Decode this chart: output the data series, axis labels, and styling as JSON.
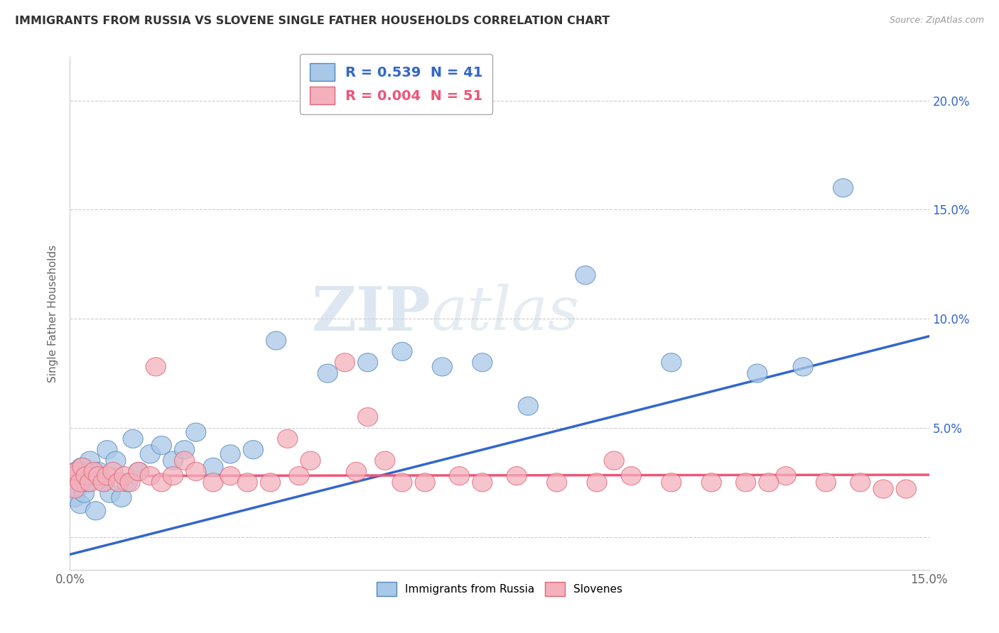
{
  "title": "IMMIGRANTS FROM RUSSIA VS SLOVENE SINGLE FATHER HOUSEHOLDS CORRELATION CHART",
  "source": "Source: ZipAtlas.com",
  "ylabel": "Single Father Households",
  "legend_label1": "Immigrants from Russia",
  "legend_label2": "Slovenes",
  "r1": 0.539,
  "n1": 41,
  "r2": 0.004,
  "n2": 51,
  "color1_fill": "#a8c8e8",
  "color2_fill": "#f4b0bc",
  "color1_edge": "#5588bb",
  "color2_edge": "#dd6677",
  "color1_line": "#3366cc",
  "color2_line": "#ee5577",
  "watermark_top": "ZIP",
  "watermark_bot": "atlas",
  "xlim": [
    0,
    15
  ],
  "ylim": [
    -1.5,
    22
  ],
  "blue_x": [
    0.05,
    0.08,
    0.1,
    0.12,
    0.15,
    0.18,
    0.2,
    0.25,
    0.3,
    0.35,
    0.4,
    0.45,
    0.5,
    0.6,
    0.65,
    0.7,
    0.8,
    0.9,
    1.0,
    1.1,
    1.2,
    1.4,
    1.6,
    1.8,
    2.0,
    2.2,
    2.5,
    2.8,
    3.2,
    3.6,
    4.5,
    5.2,
    5.8,
    6.5,
    7.2,
    8.0,
    9.0,
    10.5,
    12.0,
    12.8,
    13.5
  ],
  "blue_y": [
    2.5,
    1.8,
    3.0,
    2.2,
    2.8,
    1.5,
    3.2,
    2.0,
    2.5,
    3.5,
    2.8,
    1.2,
    3.0,
    2.5,
    4.0,
    2.0,
    3.5,
    1.8,
    2.5,
    4.5,
    3.0,
    3.8,
    4.2,
    3.5,
    4.0,
    4.8,
    3.2,
    3.8,
    4.0,
    9.0,
    7.5,
    8.0,
    8.5,
    7.8,
    8.0,
    6.0,
    12.0,
    8.0,
    7.5,
    7.8,
    16.0
  ],
  "pink_x": [
    0.05,
    0.08,
    0.12,
    0.18,
    0.22,
    0.28,
    0.35,
    0.42,
    0.5,
    0.58,
    0.65,
    0.75,
    0.85,
    0.95,
    1.05,
    1.2,
    1.4,
    1.6,
    1.8,
    2.0,
    2.2,
    2.5,
    2.8,
    3.1,
    3.5,
    4.0,
    4.2,
    4.8,
    5.0,
    5.5,
    5.8,
    6.2,
    6.8,
    7.2,
    7.8,
    8.5,
    9.2,
    9.8,
    10.5,
    11.2,
    11.8,
    12.5,
    13.2,
    13.8,
    14.2,
    14.6,
    1.5,
    3.8,
    5.2,
    9.5,
    12.2
  ],
  "pink_y": [
    2.8,
    2.2,
    3.0,
    2.5,
    3.2,
    2.8,
    2.5,
    3.0,
    2.8,
    2.5,
    2.8,
    3.0,
    2.5,
    2.8,
    2.5,
    3.0,
    2.8,
    2.5,
    2.8,
    3.5,
    3.0,
    2.5,
    2.8,
    2.5,
    2.5,
    2.8,
    3.5,
    8.0,
    3.0,
    3.5,
    2.5,
    2.5,
    2.8,
    2.5,
    2.8,
    2.5,
    2.5,
    2.8,
    2.5,
    2.5,
    2.5,
    2.8,
    2.5,
    2.5,
    2.2,
    2.2,
    7.8,
    4.5,
    5.5,
    3.5,
    2.5
  ],
  "blue_line_x0": 0,
  "blue_line_y0": -0.8,
  "blue_line_x1": 15,
  "blue_line_y1": 9.2,
  "pink_line_x0": 0,
  "pink_line_y0": 2.8,
  "pink_line_x1": 15,
  "pink_line_y1": 2.85
}
